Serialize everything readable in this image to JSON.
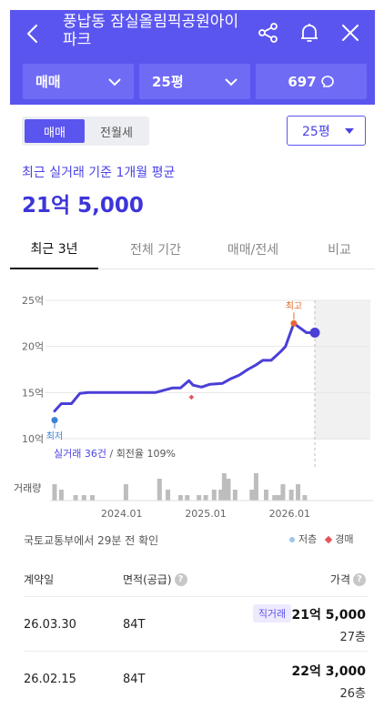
{
  "header": {
    "title": "풍납동 잠실올림픽공원아이파크",
    "back_icon": "chevron-left-icon",
    "share_icon": "share-icon",
    "bell_icon": "bell-icon",
    "close_icon": "close-icon",
    "bg_color": "#5b55f0"
  },
  "selectors": {
    "trade_type": "매매",
    "pyeong": "25평",
    "talk_count": "697"
  },
  "toggle": {
    "sale": "매매",
    "rent": "전월세"
  },
  "area_dropdown": "25평",
  "average": {
    "label": "최근 실거래 기준 1개월 평균",
    "price": "21억 5,000"
  },
  "tabs": [
    "최근 3년",
    "전체 기간",
    "매매/전세",
    "비교"
  ],
  "chart_data": {
    "type": "line",
    "y_ticks": [
      "25억",
      "20억",
      "15억",
      "10억"
    ],
    "ylim": [
      10,
      25
    ],
    "x_ticks": [
      "2024.01",
      "2025.01",
      "2026.01"
    ],
    "x_range": [
      "2023.03",
      "2026.09"
    ],
    "series": [
      {
        "x": [
          2023.2,
          2023.28,
          2023.4,
          2023.5,
          2023.6,
          2023.8,
          2024.0,
          2024.2,
          2024.4,
          2024.6,
          2024.7,
          2024.8,
          2024.85,
          2024.95,
          2025.05,
          2025.2,
          2025.3,
          2025.4,
          2025.5,
          2025.6,
          2025.68,
          2025.78,
          2025.9,
          2025.95,
          2026.05,
          2026.2,
          2026.3
        ],
        "y": [
          13.0,
          13.8,
          13.8,
          14.9,
          15.0,
          15.0,
          15.0,
          15.0,
          15.0,
          15.5,
          15.5,
          16.3,
          15.8,
          15.6,
          15.9,
          16.0,
          16.5,
          16.9,
          17.5,
          18.0,
          18.5,
          18.5,
          19.5,
          20.0,
          22.5,
          21.5,
          21.5
        ]
      }
    ],
    "low": {
      "label": "최저",
      "x": 2023.2,
      "y": 13.0
    },
    "high": {
      "label": "최고",
      "x": 2026.05,
      "y": 22.5
    },
    "current": {
      "x": 2026.3,
      "y": 21.5
    },
    "auction": {
      "x": 2024.83,
      "y": 14.5
    },
    "stats": {
      "count": "실거래 36건",
      "turnover": "회전율 109%"
    },
    "volume_label": "거래량",
    "volume": [
      {
        "x": 2023.2,
        "v": 3
      },
      {
        "x": 2023.28,
        "v": 2
      },
      {
        "x": 2023.45,
        "v": 1
      },
      {
        "x": 2023.55,
        "v": 1
      },
      {
        "x": 2023.65,
        "v": 1
      },
      {
        "x": 2024.05,
        "v": 3
      },
      {
        "x": 2024.45,
        "v": 4
      },
      {
        "x": 2024.55,
        "v": 2
      },
      {
        "x": 2024.7,
        "v": 1
      },
      {
        "x": 2024.78,
        "v": 1
      },
      {
        "x": 2024.92,
        "v": 1
      },
      {
        "x": 2025.0,
        "v": 1
      },
      {
        "x": 2025.1,
        "v": 2
      },
      {
        "x": 2025.18,
        "v": 2
      },
      {
        "x": 2025.22,
        "v": 5
      },
      {
        "x": 2025.27,
        "v": 4
      },
      {
        "x": 2025.35,
        "v": 2
      },
      {
        "x": 2025.55,
        "v": 2
      },
      {
        "x": 2025.6,
        "v": 5
      },
      {
        "x": 2025.72,
        "v": 2
      },
      {
        "x": 2025.82,
        "v": 1
      },
      {
        "x": 2025.87,
        "v": 1
      },
      {
        "x": 2025.92,
        "v": 3
      },
      {
        "x": 2026.02,
        "v": 2
      },
      {
        "x": 2026.1,
        "v": 3
      },
      {
        "x": 2026.18,
        "v": 1
      }
    ],
    "line_color": "#4b3fd6"
  },
  "source": "국토교통부에서 29분 전 확인",
  "legend": {
    "low": "저층",
    "auction": "경매"
  },
  "table": {
    "headers": {
      "date": "계약일",
      "area": "면적(공급)",
      "price": "가격"
    },
    "rows": [
      {
        "date": "26.03.30",
        "area": "84T",
        "badge": "직거래",
        "price": "21억 5,000",
        "floor": "27층"
      },
      {
        "date": "26.02.15",
        "area": "84T",
        "price": "22억 3,000",
        "floor": "26층"
      }
    ]
  }
}
